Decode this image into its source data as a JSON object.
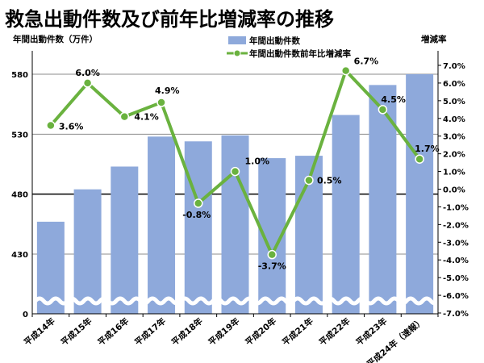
{
  "chart_data": {
    "type": "bar+line",
    "title": "救急出動件数及び前年比増減率の推移",
    "left_axis_label": "年間出動件数（万件）",
    "right_axis_label": "増減率",
    "categories": [
      "平成14年",
      "平成15年",
      "平成16年",
      "平成17年",
      "平成18年",
      "平成19年",
      "平成20年",
      "平成21年",
      "平成22年",
      "平成23年",
      "平成24年（速報）"
    ],
    "series": [
      {
        "name": "年間出動件数",
        "type": "bar",
        "axis": "left",
        "color": "#8EA9DB",
        "values": [
          457,
          484,
          503,
          528,
          524,
          529,
          510,
          512,
          546,
          571,
          580
        ]
      },
      {
        "name": "年間出動件数前年比増減率",
        "type": "line",
        "axis": "right",
        "color": "#6AB23F",
        "values": [
          3.6,
          6.0,
          4.1,
          4.9,
          -0.8,
          1.0,
          -3.7,
          0.5,
          6.7,
          4.5,
          1.7
        ],
        "labels": [
          "3.6%",
          "6.0%",
          "4.1%",
          "4.9%",
          "-0.8%",
          "1.0%",
          "-3.7%",
          "0.5%",
          "6.7%",
          "4.5%",
          "1.7%"
        ]
      }
    ],
    "left_ticks": [
      "0",
      "430",
      "480",
      "530",
      "580"
    ],
    "left_tick_values": [
      430,
      480,
      530,
      580
    ],
    "left_axis_break": true,
    "right_ticks": [
      "7.0%",
      "6.0%",
      "5.0%",
      "4.0%",
      "3.0%",
      "2.0%",
      "1.0%",
      "0.0%",
      "-1.0%",
      "-2.0%",
      "-3.0%",
      "-4.0%",
      "-5.0%",
      "-6.0%",
      "-7.0%"
    ],
    "right_tick_values": [
      7,
      6,
      5,
      4,
      3,
      2,
      1,
      0,
      -1,
      -2,
      -3,
      -4,
      -5,
      -6,
      -7
    ],
    "right_ylim": [
      -7,
      7
    ],
    "gridlines": "horizontal at left ticks",
    "legend_position": "top-center"
  }
}
